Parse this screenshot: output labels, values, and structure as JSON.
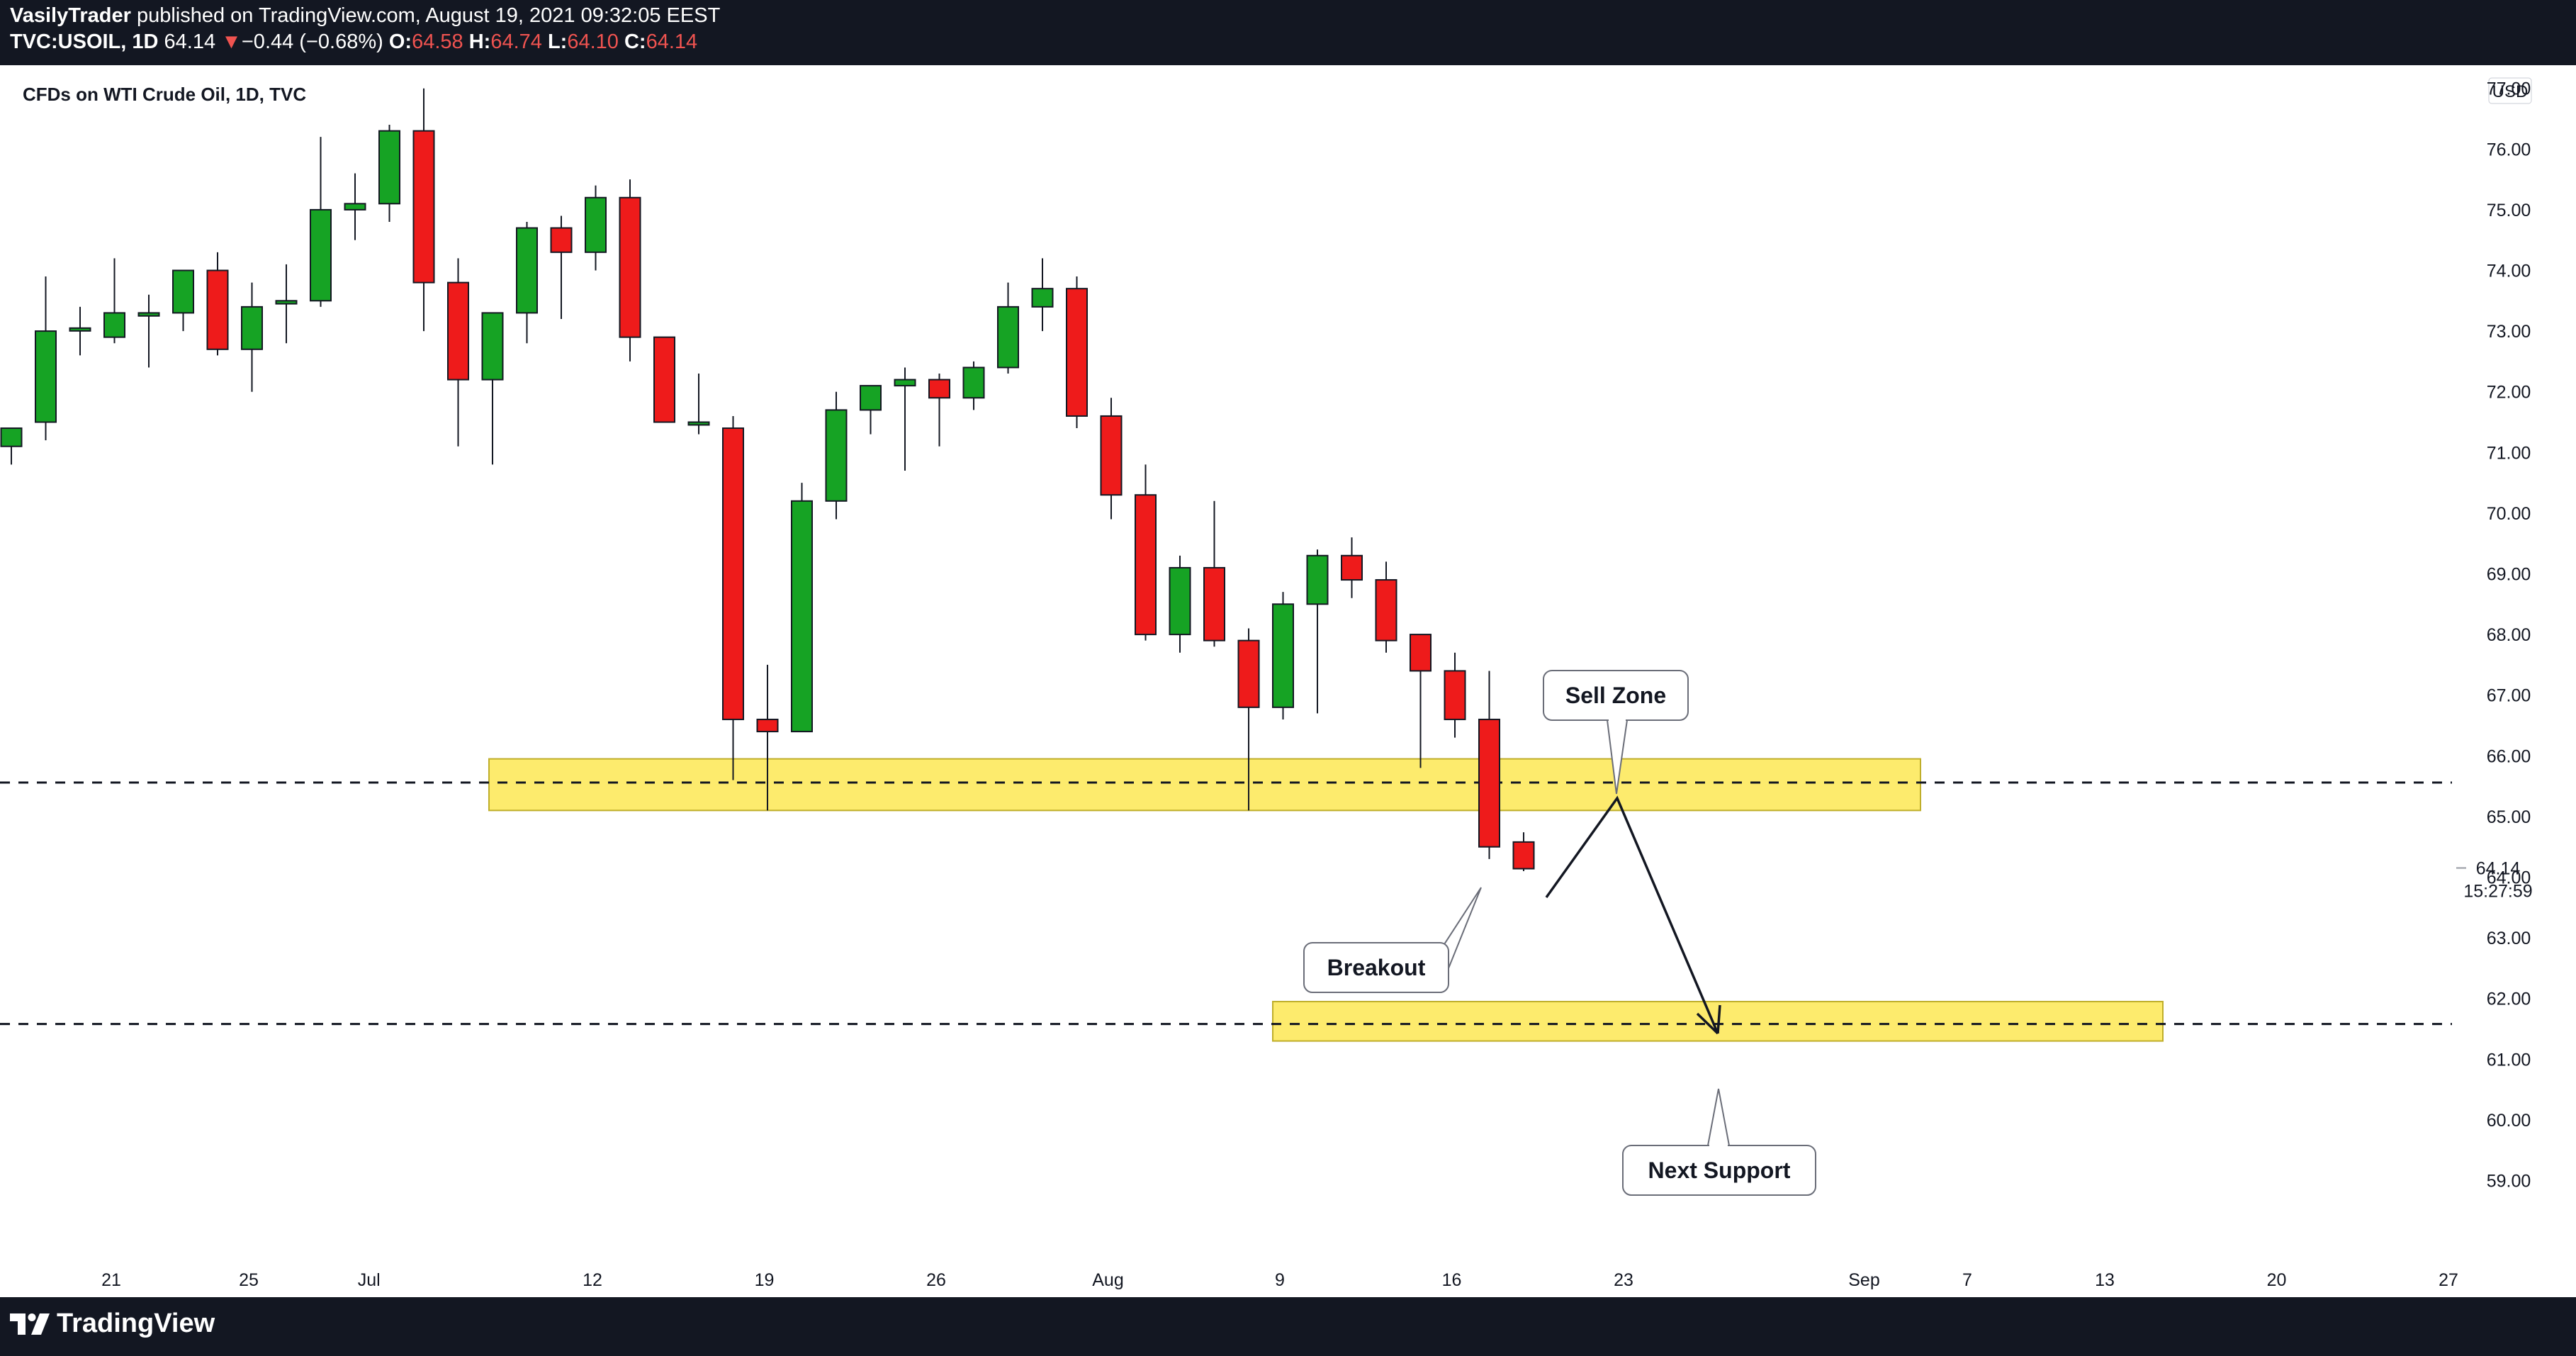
{
  "header": {
    "author": "VasilyTrader",
    "published": "published on TradingView.com, August 19, 2021 09:32:05 EEST",
    "symbol": "TVC:USOIL, 1D",
    "last": "64.14",
    "change_arrow": "▼",
    "change": "−0.44 (−0.68%)",
    "o_label": "O:",
    "o": "64.58",
    "h_label": "H:",
    "h": "64.74",
    "l_label": "L:",
    "l": "64.10",
    "c_label": "C:",
    "c": "64.14"
  },
  "chart_title": "CFDs on WTI Crude Oil, 1D, TVC",
  "currency": "USD",
  "footer": {
    "brand": "TradingView"
  },
  "colors": {
    "up": "#16a324",
    "down": "#ee1b1b",
    "zone": "#fdeb6d",
    "zone_border": "#bfae2a",
    "dark_bg": "#131722"
  },
  "chart_data": {
    "type": "candlestick",
    "ylim": [
      58.2,
      77.9
    ],
    "y_ticks": [
      59,
      60,
      61,
      62,
      63,
      64,
      65,
      66,
      67,
      68,
      69,
      70,
      71,
      72,
      73,
      74,
      75,
      76,
      77
    ],
    "x_ticks": [
      "21",
      "25",
      "Jul",
      "12",
      "19",
      "26",
      "Aug",
      "9",
      "16",
      "23",
      "Sep",
      "7",
      "13",
      "20",
      "27"
    ],
    "candles": [
      {
        "date": "Jun 18",
        "o": 71.1,
        "h": 71.4,
        "l": 70.8,
        "c": 71.4
      },
      {
        "date": "Jun 21",
        "o": 71.5,
        "h": 73.9,
        "l": 71.2,
        "c": 73.0
      },
      {
        "date": "Jun 22",
        "o": 73.05,
        "h": 73.4,
        "l": 72.6,
        "c": 73.05
      },
      {
        "date": "Jun 23",
        "o": 72.9,
        "h": 74.2,
        "l": 72.8,
        "c": 73.3
      },
      {
        "date": "Jun 24",
        "o": 73.25,
        "h": 73.6,
        "l": 72.4,
        "c": 73.3
      },
      {
        "date": "Jun 25",
        "o": 73.3,
        "h": 74.0,
        "l": 73.0,
        "c": 74.0
      },
      {
        "date": "Jun 28",
        "o": 74.0,
        "h": 74.3,
        "l": 72.6,
        "c": 72.7
      },
      {
        "date": "Jun 29",
        "o": 72.7,
        "h": 73.8,
        "l": 72.0,
        "c": 73.4
      },
      {
        "date": "Jun 30",
        "o": 73.45,
        "h": 74.1,
        "l": 72.8,
        "c": 73.5
      },
      {
        "date": "Jul 1",
        "o": 73.5,
        "h": 76.2,
        "l": 73.4,
        "c": 75.0
      },
      {
        "date": "Jul 2",
        "o": 75.0,
        "h": 75.6,
        "l": 74.5,
        "c": 75.1
      },
      {
        "date": "Jul 5",
        "o": 75.1,
        "h": 76.4,
        "l": 74.8,
        "c": 76.3
      },
      {
        "date": "Jul 6",
        "o": 76.3,
        "h": 77.0,
        "l": 73.0,
        "c": 73.8
      },
      {
        "date": "Jul 7",
        "o": 73.8,
        "h": 74.2,
        "l": 71.1,
        "c": 72.2
      },
      {
        "date": "Jul 8",
        "o": 72.2,
        "h": 73.3,
        "l": 70.8,
        "c": 73.3
      },
      {
        "date": "Jul 9",
        "o": 73.3,
        "h": 74.8,
        "l": 72.8,
        "c": 74.7
      },
      {
        "date": "Jul 12",
        "o": 74.7,
        "h": 74.9,
        "l": 73.2,
        "c": 74.3
      },
      {
        "date": "Jul 13",
        "o": 74.3,
        "h": 75.4,
        "l": 74.0,
        "c": 75.2
      },
      {
        "date": "Jul 14",
        "o": 75.2,
        "h": 75.5,
        "l": 72.5,
        "c": 72.9
      },
      {
        "date": "Jul 15",
        "o": 72.9,
        "h": 72.9,
        "l": 71.5,
        "c": 71.5
      },
      {
        "date": "Jul 16",
        "o": 71.5,
        "h": 72.3,
        "l": 71.3,
        "c": 71.5
      },
      {
        "date": "Jul 19",
        "o": 71.4,
        "h": 71.6,
        "l": 65.6,
        "c": 66.6
      },
      {
        "date": "Jul 20",
        "o": 66.6,
        "h": 67.5,
        "l": 65.1,
        "c": 66.4
      },
      {
        "date": "Jul 21",
        "o": 66.4,
        "h": 70.5,
        "l": 66.4,
        "c": 70.2
      },
      {
        "date": "Jul 22",
        "o": 70.2,
        "h": 72.0,
        "l": 69.9,
        "c": 71.7
      },
      {
        "date": "Jul 23",
        "o": 71.7,
        "h": 72.1,
        "l": 71.3,
        "c": 72.1
      },
      {
        "date": "Jul 26",
        "o": 72.1,
        "h": 72.4,
        "l": 70.7,
        "c": 72.2
      },
      {
        "date": "Jul 27",
        "o": 72.2,
        "h": 72.3,
        "l": 71.1,
        "c": 71.9
      },
      {
        "date": "Jul 28",
        "o": 71.9,
        "h": 72.5,
        "l": 71.7,
        "c": 72.4
      },
      {
        "date": "Jul 29",
        "o": 72.4,
        "h": 73.8,
        "l": 72.3,
        "c": 73.4
      },
      {
        "date": "Jul 30",
        "o": 73.4,
        "h": 74.2,
        "l": 73.0,
        "c": 73.7
      },
      {
        "date": "Aug 2",
        "o": 73.7,
        "h": 73.9,
        "l": 71.4,
        "c": 71.6
      },
      {
        "date": "Aug 3",
        "o": 71.6,
        "h": 71.9,
        "l": 69.9,
        "c": 70.3
      },
      {
        "date": "Aug 4",
        "o": 70.3,
        "h": 70.8,
        "l": 67.9,
        "c": 68.0
      },
      {
        "date": "Aug 5",
        "o": 68.0,
        "h": 69.3,
        "l": 67.7,
        "c": 69.1
      },
      {
        "date": "Aug 6",
        "o": 69.1,
        "h": 70.2,
        "l": 67.8,
        "c": 67.9
      },
      {
        "date": "Aug 9",
        "o": 67.9,
        "h": 68.1,
        "l": 65.1,
        "c": 66.8
      },
      {
        "date": "Aug 10",
        "o": 66.8,
        "h": 68.7,
        "l": 66.6,
        "c": 68.5
      },
      {
        "date": "Aug 11",
        "o": 68.5,
        "h": 69.4,
        "l": 66.7,
        "c": 69.3
      },
      {
        "date": "Aug 12",
        "o": 69.3,
        "h": 69.6,
        "l": 68.6,
        "c": 68.9
      },
      {
        "date": "Aug 13",
        "o": 68.9,
        "h": 69.2,
        "l": 67.7,
        "c": 67.9
      },
      {
        "date": "Aug 16",
        "o": 68.0,
        "h": 68.0,
        "l": 65.8,
        "c": 67.4
      },
      {
        "date": "Aug 17",
        "o": 67.4,
        "h": 67.7,
        "l": 66.3,
        "c": 66.6
      },
      {
        "date": "Aug 18",
        "o": 66.6,
        "h": 67.4,
        "l": 64.3,
        "c": 64.5
      },
      {
        "date": "Aug 19",
        "o": 64.58,
        "h": 64.74,
        "l": 64.1,
        "c": 64.14
      }
    ],
    "zones": [
      {
        "from": 65.1,
        "to": 65.95
      },
      {
        "from": 61.3,
        "to": 61.95
      }
    ],
    "levels": [
      65.56,
      61.58
    ],
    "current": {
      "price": "64.14",
      "countdown": "15:27:59"
    },
    "annotations": [
      "Sell Zone",
      "Breakout",
      "Next Support"
    ]
  }
}
